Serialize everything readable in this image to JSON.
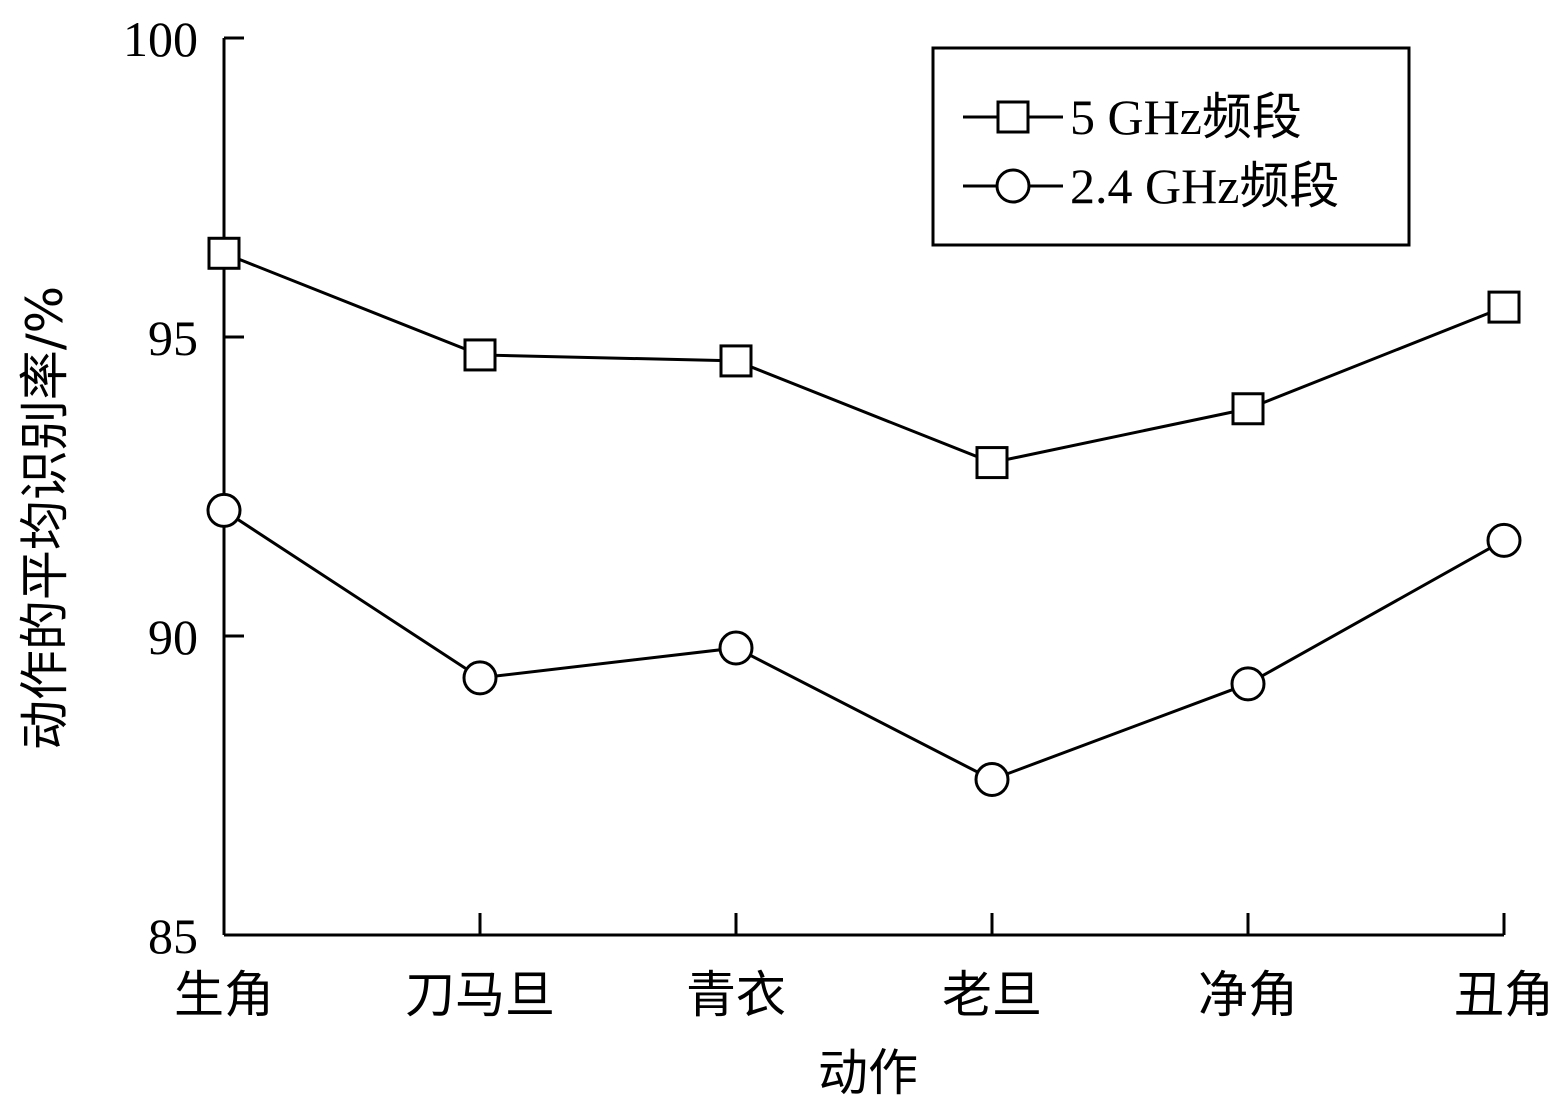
{
  "chart_data": {
    "type": "line",
    "title": "",
    "xlabel": "动作",
    "ylabel": "动作的平均识别率/%",
    "categories": [
      "生角",
      "刀马旦",
      "青衣",
      "老旦",
      "净角",
      "丑角"
    ],
    "ylim": [
      85,
      100
    ],
    "yticks": [
      85,
      90,
      95,
      100
    ],
    "grid": false,
    "legend_position": "top-right",
    "series": [
      {
        "name": "5 GHz频段",
        "marker": "square",
        "values": [
          96.4,
          94.7,
          94.6,
          92.9,
          93.8,
          95.5
        ]
      },
      {
        "name": "2.4 GHz频段",
        "marker": "circle",
        "values": [
          92.1,
          89.3,
          89.8,
          87.6,
          89.2,
          91.6
        ]
      }
    ]
  }
}
